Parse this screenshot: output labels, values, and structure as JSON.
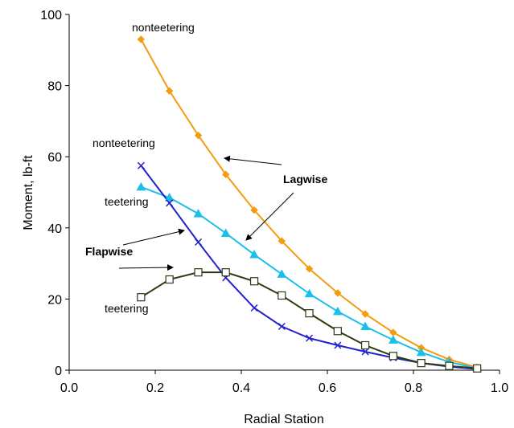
{
  "chart_data": {
    "type": "line",
    "title": "",
    "xlabel": "Radial Station",
    "ylabel": "Moment, lb-ft",
    "xlim": [
      0.0,
      1.0
    ],
    "ylim": [
      0,
      100
    ],
    "x_ticks": [
      "0.0",
      "0.2",
      "0.4",
      "0.6",
      "0.8",
      "1.0"
    ],
    "y_ticks": [
      "0",
      "20",
      "40",
      "60",
      "80",
      "100"
    ],
    "x_tick_values": [
      0.0,
      0.2,
      0.4,
      0.6,
      0.8,
      1.0
    ],
    "y_tick_values": [
      0,
      20,
      40,
      60,
      80,
      100
    ],
    "grid": false,
    "legend": "none",
    "x": [
      0.167,
      0.233,
      0.3,
      0.364,
      0.43,
      0.494,
      0.558,
      0.624,
      0.688,
      0.753,
      0.818,
      0.883,
      0.948
    ],
    "series": [
      {
        "color": "#F39C12",
        "marker": "diamond",
        "values": [
          93,
          78.5,
          66,
          55,
          45,
          36.3,
          28.5,
          21.7,
          15.8,
          10.6,
          6.3,
          3.0,
          0.8
        ]
      },
      {
        "color": "#1ABFEA",
        "marker": "triangle",
        "values": [
          51.5,
          48.5,
          44,
          38.5,
          32.5,
          27,
          21.5,
          16.5,
          12.3,
          8.5,
          5.0,
          2.3,
          0.5
        ]
      },
      {
        "color": "#2222CC",
        "marker": "x",
        "values": [
          57.5,
          47,
          36,
          26,
          17.5,
          12.3,
          9.0,
          7.0,
          5.2,
          3.5,
          2.0,
          1.0,
          0.3
        ]
      },
      {
        "color": "#2E3A12",
        "marker": "open-square",
        "values": [
          20.5,
          25.5,
          27.5,
          27.5,
          25,
          21,
          16,
          11,
          7.0,
          4.0,
          2.0,
          1.2,
          0.5
        ]
      }
    ],
    "annotations": {
      "nonteetering_top": "nonteetering",
      "nonteetering_mid": "nonteetering",
      "teetering_upper": "teetering",
      "teetering_lower": "teetering",
      "lagwise": "Lagwise",
      "flapwise": "Flapwise"
    }
  }
}
